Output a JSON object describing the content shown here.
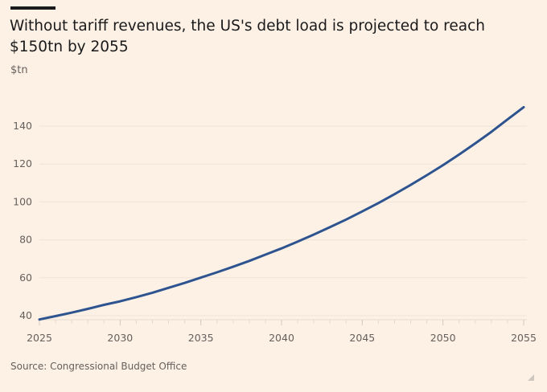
{
  "title": "Without tariff revenues, the US's debt load is projected to reach $150tn by 2055",
  "unit_label": "$tn",
  "source": "Source: Congressional Budget Office",
  "colors": {
    "background": "#fdf1e6",
    "line": "#2e5490",
    "grid": "#f0e2d4"
  },
  "chart_data": {
    "type": "line",
    "title": "Without tariff revenues, the US's debt load is projected to reach $150tn by 2055",
    "ylabel": "$tn",
    "xlabel": "",
    "xlim": [
      2025,
      2055
    ],
    "ylim": [
      36,
      150
    ],
    "grid": true,
    "x_ticks": [
      "2025",
      "2030",
      "2035",
      "2040",
      "2045",
      "2050",
      "2055"
    ],
    "y_ticks": [
      "40",
      "60",
      "80",
      "100",
      "120",
      "140"
    ],
    "x": [
      2025,
      2026,
      2027,
      2028,
      2029,
      2030,
      2031,
      2032,
      2033,
      2034,
      2035,
      2036,
      2037,
      2038,
      2039,
      2040,
      2041,
      2042,
      2043,
      2044,
      2045,
      2046,
      2047,
      2048,
      2049,
      2050,
      2051,
      2052,
      2053,
      2054,
      2055
    ],
    "values": [
      38.0,
      39.8,
      41.6,
      43.6,
      45.7,
      47.6,
      49.8,
      52.1,
      54.7,
      57.3,
      60.1,
      62.9,
      65.8,
      68.9,
      72.2,
      75.5,
      79.1,
      82.8,
      86.7,
      90.7,
      95.0,
      99.4,
      104.1,
      109.0,
      114.1,
      119.4,
      125.0,
      130.9,
      137.0,
      143.5,
      150.0
    ]
  }
}
